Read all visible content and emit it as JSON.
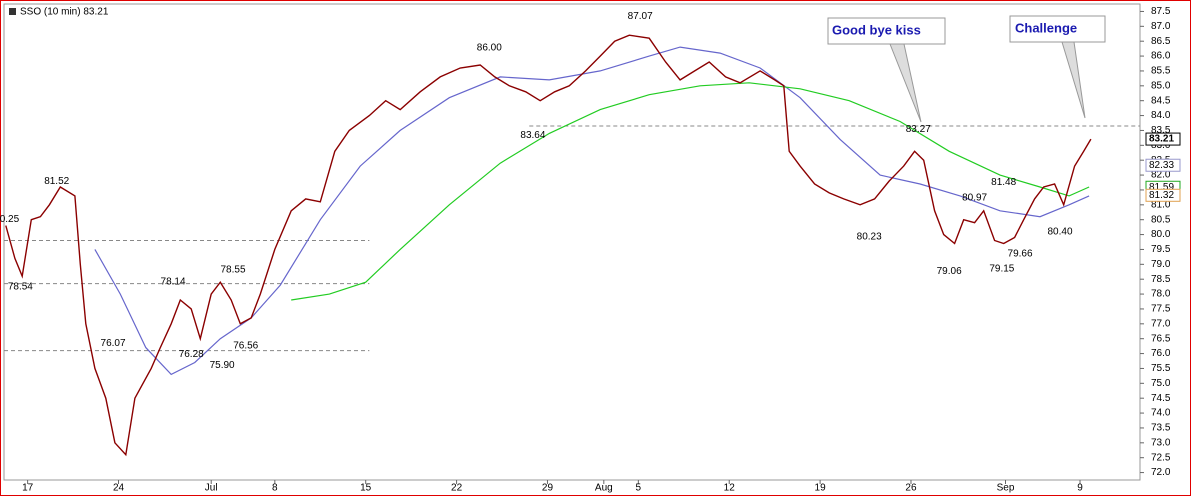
{
  "chart_data": {
    "type": "line",
    "title": "SSO (10 min) 83.21",
    "xlim": [
      -1.3,
      61.2
    ],
    "xticks": [
      {
        "value": 0,
        "label": "17"
      },
      {
        "value": 5,
        "label": "24"
      },
      {
        "value": 10.1,
        "label": "Jul"
      },
      {
        "value": 13.6,
        "label": "8"
      },
      {
        "value": 18.6,
        "label": "15"
      },
      {
        "value": 23.6,
        "label": "22"
      },
      {
        "value": 28.6,
        "label": "29"
      },
      {
        "value": 31.7,
        "label": "Aug"
      },
      {
        "value": 33.6,
        "label": "5"
      },
      {
        "value": 38.6,
        "label": "12"
      },
      {
        "value": 43.6,
        "label": "19"
      },
      {
        "value": 48.6,
        "label": "26"
      },
      {
        "value": 53.8,
        "label": "Sep"
      },
      {
        "value": 57.9,
        "label": "9"
      }
    ],
    "ylim": [
      71.75,
      87.75
    ],
    "yticks": [
      {
        "value": 72,
        "label": "72.0"
      },
      {
        "value": 72.5,
        "label": "72.5"
      },
      {
        "value": 73,
        "label": "73.0"
      },
      {
        "value": 73.5,
        "label": "73.5"
      },
      {
        "value": 74,
        "label": "74.0"
      },
      {
        "value": 74.5,
        "label": "74.5"
      },
      {
        "value": 75,
        "label": "75.0"
      },
      {
        "value": 75.5,
        "label": "75.5"
      },
      {
        "value": 76,
        "label": "76.0"
      },
      {
        "value": 76.5,
        "label": "76.5"
      },
      {
        "value": 77,
        "label": "77.0"
      },
      {
        "value": 77.5,
        "label": "77.5"
      },
      {
        "value": 78,
        "label": "78.0"
      },
      {
        "value": 78.5,
        "label": "78.5"
      },
      {
        "value": 79,
        "label": "79.0"
      },
      {
        "value": 79.5,
        "label": "79.5"
      },
      {
        "value": 80,
        "label": "80.0"
      },
      {
        "value": 80.5,
        "label": "80.5"
      },
      {
        "value": 81,
        "label": "81.0"
      },
      {
        "value": 81.5,
        "label": "81.5"
      },
      {
        "value": 82,
        "label": "82.0"
      },
      {
        "value": 82.5,
        "label": "82.5"
      },
      {
        "value": 83,
        "label": "83.0"
      },
      {
        "value": 83.5,
        "label": "83.5"
      },
      {
        "value": 84,
        "label": "84.0"
      },
      {
        "value": 84.5,
        "label": "84.5"
      },
      {
        "value": 85,
        "label": "85.0"
      },
      {
        "value": 85.5,
        "label": "85.5"
      },
      {
        "value": 86,
        "label": "86.0"
      },
      {
        "value": 86.5,
        "label": "86.5"
      },
      {
        "value": 87,
        "label": "87.0"
      },
      {
        "value": 87.5,
        "label": "87.5"
      }
    ],
    "series": [
      {
        "color": "#8b0000",
        "x": [
          -1.2,
          -0.7,
          -0.3,
          0.2,
          0.7,
          1.2,
          1.8,
          2.6,
          2.9,
          3.2,
          3.7,
          4.3,
          4.8,
          5.4,
          5.9,
          6.8,
          7.3,
          7.9,
          8.4,
          9.0,
          9.5,
          10.1,
          10.6,
          11.2,
          11.7,
          12.3,
          12.8,
          13.6,
          14.5,
          15.3,
          16.1,
          16.9,
          17.7,
          18.8,
          19.7,
          20.5,
          21.6,
          22.7,
          23.8,
          24.9,
          25.7,
          26.5,
          27.4,
          28.2,
          29.0,
          29.8,
          30.7,
          31.5,
          32.3,
          33.1,
          34.2,
          35.1,
          35.9,
          36.7,
          37.5,
          38.4,
          39.2,
          40.3,
          41.1,
          41.6,
          41.9,
          42.5,
          43.3,
          44.1,
          44.9,
          45.8,
          46.6,
          47.4,
          48.2,
          48.8,
          49.3,
          49.9,
          50.4,
          51.0,
          51.5,
          52.1,
          52.6,
          53.2,
          53.7,
          54.3,
          54.8,
          55.4,
          55.9,
          56.5,
          57.0,
          57.6,
          58.1,
          58.5
        ],
        "values": [
          80.3,
          79.2,
          78.6,
          80.5,
          80.6,
          81.0,
          81.6,
          81.3,
          79.0,
          77.0,
          75.5,
          74.5,
          73.0,
          72.6,
          74.5,
          75.5,
          76.2,
          77.0,
          77.8,
          77.5,
          76.5,
          78.0,
          78.4,
          77.8,
          77.0,
          77.2,
          78.0,
          79.5,
          80.8,
          81.2,
          81.1,
          82.8,
          83.5,
          84.0,
          84.5,
          84.2,
          84.8,
          85.3,
          85.6,
          85.7,
          85.3,
          85.0,
          84.8,
          84.5,
          84.8,
          85.0,
          85.5,
          86.0,
          86.5,
          86.7,
          86.6,
          85.8,
          85.2,
          85.5,
          85.8,
          85.3,
          85.1,
          85.5,
          85.2,
          85.0,
          82.8,
          82.3,
          81.7,
          81.4,
          81.2,
          81.0,
          81.2,
          81.8,
          82.3,
          82.8,
          82.5,
          80.8,
          80.0,
          79.7,
          80.5,
          80.4,
          80.8,
          79.8,
          79.7,
          79.9,
          80.5,
          81.2,
          81.6,
          81.7,
          81.0,
          82.3,
          82.8,
          83.21
        ]
      },
      {
        "color": "#6666cc",
        "x": [
          3.7,
          5.1,
          6.5,
          7.9,
          9.2,
          10.6,
          12.3,
          13.9,
          16.1,
          18.3,
          20.5,
          23.2,
          26.0,
          28.7,
          31.5,
          34.2,
          35.9,
          38.1,
          40.3,
          42.5,
          44.7,
          46.9,
          49.1,
          51.3,
          53.5,
          55.7,
          57.3,
          58.4
        ],
        "values": [
          79.5,
          78.0,
          76.2,
          75.3,
          75.7,
          76.5,
          77.2,
          78.3,
          80.5,
          82.3,
          83.5,
          84.6,
          85.3,
          85.2,
          85.5,
          86.0,
          86.3,
          86.1,
          85.6,
          84.6,
          83.2,
          82.0,
          81.7,
          81.3,
          80.8,
          80.6,
          81.0,
          81.3
        ]
      },
      {
        "color": "#22cc22",
        "x": [
          14.5,
          16.6,
          18.6,
          20.5,
          23.2,
          26.0,
          28.7,
          31.5,
          34.2,
          37.0,
          39.7,
          42.5,
          45.2,
          48.0,
          50.7,
          53.5,
          55.7,
          57.3,
          58.4
        ],
        "values": [
          77.8,
          78.0,
          78.4,
          79.5,
          81.0,
          82.4,
          83.4,
          84.2,
          84.7,
          85.0,
          85.1,
          84.9,
          84.5,
          83.8,
          82.8,
          82.0,
          81.6,
          81.3,
          81.6
        ]
      }
    ],
    "reference_lines": [
      {
        "value": 79.8,
        "x": [
          -1.3,
          18.8
        ]
      },
      {
        "value": 78.35,
        "x": [
          -1.3,
          18.8
        ]
      },
      {
        "value": 76.1,
        "x": [
          -1.3,
          18.8
        ]
      },
      {
        "value": 83.65,
        "x": [
          27.6,
          61.2
        ]
      }
    ],
    "annotations": [
      {
        "label": "81.52",
        "x": 1.6,
        "y": 81.52,
        "position": "above"
      },
      {
        "label": "78.54",
        "x": -0.4,
        "y": 78.54,
        "position": "below"
      },
      {
        "label": "0.25",
        "x": -1.0,
        "y": 80.25,
        "position": "above"
      },
      {
        "label": "76.07",
        "x": 4.7,
        "y": 76.07,
        "position": "above"
      },
      {
        "label": "78.14",
        "x": 8.0,
        "y": 78.14,
        "position": "above"
      },
      {
        "label": "76.28",
        "x": 9.0,
        "y": 76.28,
        "position": "below"
      },
      {
        "label": "75.90",
        "x": 10.7,
        "y": 75.9,
        "position": "below"
      },
      {
        "label": "78.55",
        "x": 11.3,
        "y": 78.55,
        "position": "above"
      },
      {
        "label": "76.56",
        "x": 12.0,
        "y": 76.56,
        "position": "below"
      },
      {
        "label": "86.00",
        "x": 25.4,
        "y": 86.0,
        "position": "above"
      },
      {
        "label": "83.64",
        "x": 27.8,
        "y": 83.64,
        "position": "below"
      },
      {
        "label": "87.07",
        "x": 33.7,
        "y": 87.07,
        "position": "above"
      },
      {
        "label": "83.27",
        "x": 49.0,
        "y": 83.27,
        "position": "above"
      },
      {
        "label": "80.23",
        "x": 46.3,
        "y": 80.23,
        "position": "below"
      },
      {
        "label": "79.06",
        "x": 50.7,
        "y": 79.06,
        "position": "below"
      },
      {
        "label": "80.97",
        "x": 52.1,
        "y": 80.97,
        "position": "above"
      },
      {
        "label": "81.48",
        "x": 53.7,
        "y": 81.48,
        "position": "above"
      },
      {
        "label": "79.66",
        "x": 54.6,
        "y": 79.66,
        "position": "below"
      },
      {
        "label": "79.15",
        "x": 53.6,
        "y": 79.15,
        "position": "below"
      },
      {
        "label": "80.40",
        "x": 56.8,
        "y": 80.4,
        "position": "below"
      }
    ],
    "last_labels": [
      {
        "label": "83.21",
        "value": 83.21,
        "color": "#000000"
      },
      {
        "label": "82.33",
        "value": 82.33,
        "color": "#9999cc"
      },
      {
        "label": "81.59",
        "value": 81.59,
        "color": "#22aa22"
      },
      {
        "label": "81.32",
        "value": 81.32,
        "color": "#e0a050"
      }
    ],
    "callouts": [
      "Good bye kiss",
      "Challenge"
    ]
  }
}
